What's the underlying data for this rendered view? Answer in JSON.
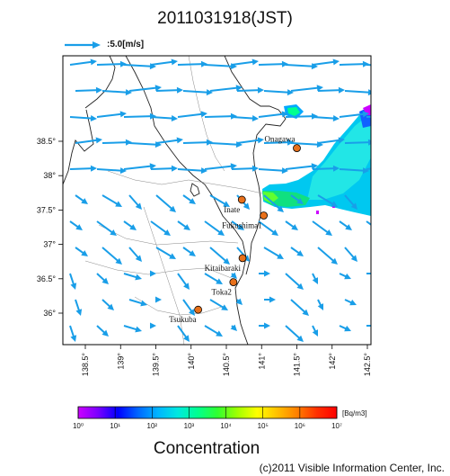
{
  "title": "2011031918(JST)",
  "reference_arrow": {
    "label": ":5.0[m/s]",
    "speed_ms": 5.0
  },
  "colors": {
    "arrow": "#199ee8",
    "frame": "#000000",
    "coast": "#222222",
    "site_marker": "#e8701a"
  },
  "axes": {
    "lat_labels": [
      "38.5°",
      "38°",
      "37.5°",
      "37°",
      "36.5°",
      "36°"
    ],
    "lon_labels": [
      "138.5°",
      "139°",
      "139.5°",
      "140°",
      "140.5°",
      "141°",
      "141.5°",
      "142°",
      "142.5°"
    ]
  },
  "sites": [
    {
      "name": "Onagawa",
      "lat": 38.4,
      "lon": 141.5
    },
    {
      "name": "Inate",
      "lat": 37.65,
      "lon": 140.72
    },
    {
      "name": "Fukushima1",
      "lat": 37.42,
      "lon": 141.03
    },
    {
      "name": "Kitaibaraki",
      "lat": 36.8,
      "lon": 140.73
    },
    {
      "name": "Toka2",
      "lat": 36.45,
      "lon": 140.6
    },
    {
      "name": "Tsukuba",
      "lat": 36.05,
      "lon": 140.1
    }
  ],
  "colorbar": {
    "unit": "[Bq/m3]",
    "title": "Concentration",
    "ticks": [
      "10⁰",
      "10¹",
      "10²",
      "10³",
      "10⁴",
      "10⁵",
      "10⁶",
      "10⁷"
    ],
    "colors": [
      "#cc00ff",
      "#7a00ff",
      "#0000ff",
      "#0066ff",
      "#00b4ff",
      "#00e8e0",
      "#00ff90",
      "#30ff30",
      "#a0ff00",
      "#ffff00",
      "#ffc000",
      "#ff8000",
      "#ff3000",
      "#ff0000"
    ]
  },
  "copyright": "(c)2011 Visible Information Center, Inc."
}
